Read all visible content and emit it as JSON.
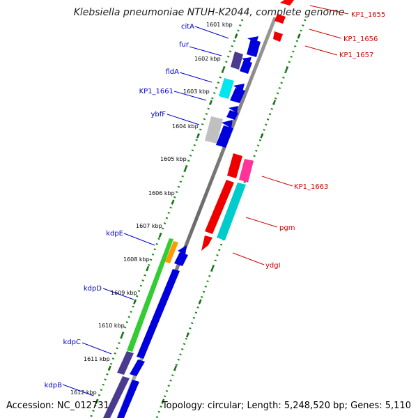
{
  "title": "Klebsiella pneumoniae NTUH-K2044, complete genome",
  "footer": {
    "accession": "Accession: NC_012731",
    "summary": "Topology: circular; Length: 5,248,520 bp; Genes: 5,110"
  },
  "ticks": [
    {
      "label": "1601 kbp"
    },
    {
      "label": "1602 kbp"
    },
    {
      "label": "1603 kbp"
    },
    {
      "label": "1604 kbp"
    },
    {
      "label": "1605 kbp"
    },
    {
      "label": "1606 kbp"
    },
    {
      "label": "1607 kbp"
    },
    {
      "label": "1608 kbp"
    },
    {
      "label": "1609 kbp"
    },
    {
      "label": "1610 kbp"
    },
    {
      "label": "1611 kbp"
    },
    {
      "label": "1612 kbp"
    }
  ],
  "left_genes": [
    {
      "name": "citA",
      "color": "#0000cc"
    },
    {
      "name": "fur",
      "color": "#0000cc"
    },
    {
      "name": "fldA",
      "color": "#0000cc"
    },
    {
      "name": "KP1_1661",
      "color": "#0000cc"
    },
    {
      "name": "ybfF",
      "color": "#0000cc"
    },
    {
      "name": "kdpE",
      "color": "#0000cc"
    },
    {
      "name": "kdpD",
      "color": "#0000cc"
    },
    {
      "name": "kdpC",
      "color": "#0000cc"
    },
    {
      "name": "kdpB",
      "color": "#0000cc"
    }
  ],
  "right_genes": [
    {
      "name": "KP1_1655",
      "color": "#cc0000"
    },
    {
      "name": "KP1_1656",
      "color": "#cc0000"
    },
    {
      "name": "KP1_1657",
      "color": "#cc0000"
    },
    {
      "name": "KP1_1663",
      "color": "#cc0000"
    },
    {
      "name": "pgm",
      "color": "#cc0000"
    },
    {
      "name": "ydgI",
      "color": "#cc0000"
    }
  ],
  "colors": {
    "backbone": "#7f7f7f",
    "tick_green": "#1a8a1a",
    "forward_strand": "#0000dd",
    "reverse_strand": "#ee0000",
    "green_gene": "#33cc33",
    "orange_gene": "#ff9900",
    "purple_gene": "#4b3b8f",
    "cyan_gene": "#00cccc",
    "magenta_gene": "#ff3399",
    "gray_gene": "#c0c0c0"
  }
}
